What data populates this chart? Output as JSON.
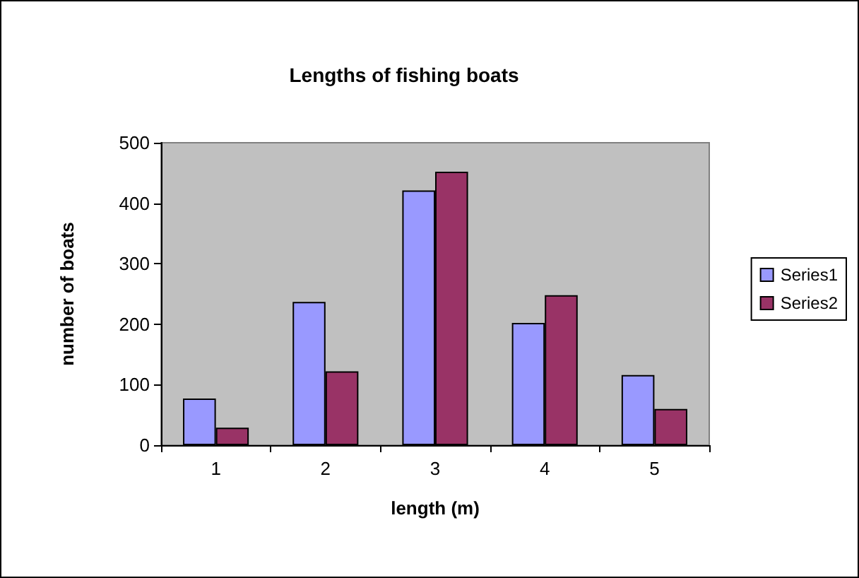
{
  "chart_data": {
    "type": "bar",
    "title": "Lengths of fishing boats",
    "xlabel": "length (m)",
    "ylabel": "number of boats",
    "categories": [
      "1",
      "2",
      "3",
      "4",
      "5"
    ],
    "series": [
      {
        "name": "Series1",
        "color": "#9999ff",
        "values": [
          77,
          237,
          421,
          202,
          116
        ]
      },
      {
        "name": "Series2",
        "color": "#993366",
        "values": [
          29,
          122,
          452,
          248,
          60
        ]
      }
    ],
    "ylim": [
      0,
      500
    ],
    "yticks": [
      0,
      100,
      200,
      300,
      400,
      500
    ],
    "grid": false,
    "legend": "right"
  }
}
